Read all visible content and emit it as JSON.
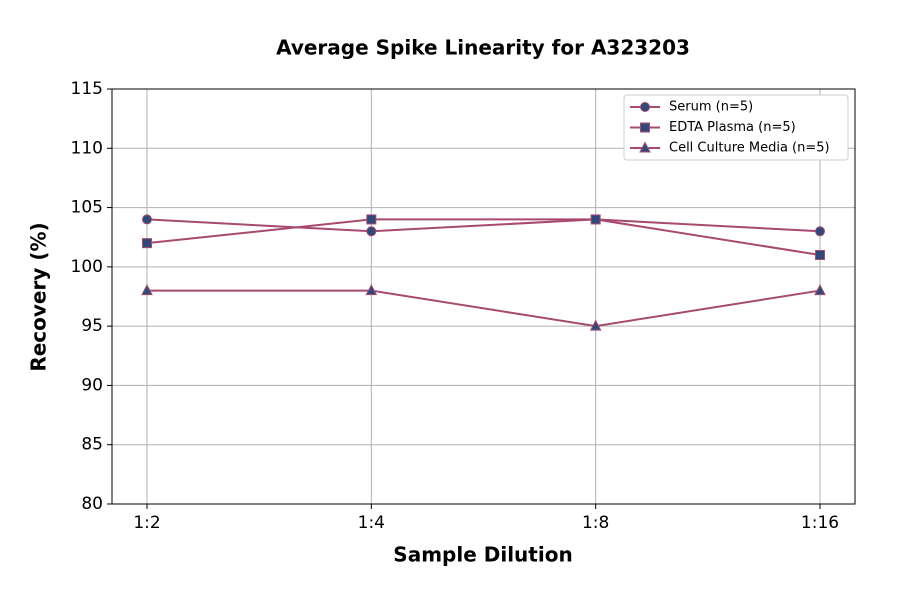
{
  "chart_data": {
    "type": "line",
    "title": "Average Spike Linearity for A323203",
    "x_label": "Sample Dilution",
    "y_label": "Recovery (%)",
    "categories": [
      "1:2",
      "1:4",
      "1:8",
      "1:16"
    ],
    "series": [
      {
        "name": "Serum (n=5)",
        "color": "#a8496f",
        "marker_color": "#2e4a7a",
        "marker": "circle",
        "values": [
          104,
          103,
          104,
          103
        ]
      },
      {
        "name": "EDTA Plasma (n=5)",
        "color": "#a8496f",
        "marker_color": "#2e4a7a",
        "marker": "square",
        "values": [
          102,
          104,
          104,
          101
        ]
      },
      {
        "name": "Cell Culture Media (n=5)",
        "color": "#a8496f",
        "marker_color": "#2e4a7a",
        "marker": "triangle",
        "values": [
          98,
          98,
          95,
          98
        ]
      }
    ],
    "ylim": [
      80,
      115
    ],
    "yticks": [
      80,
      85,
      90,
      95,
      100,
      105,
      110,
      115
    ],
    "grid": true,
    "legend": "upper right"
  }
}
